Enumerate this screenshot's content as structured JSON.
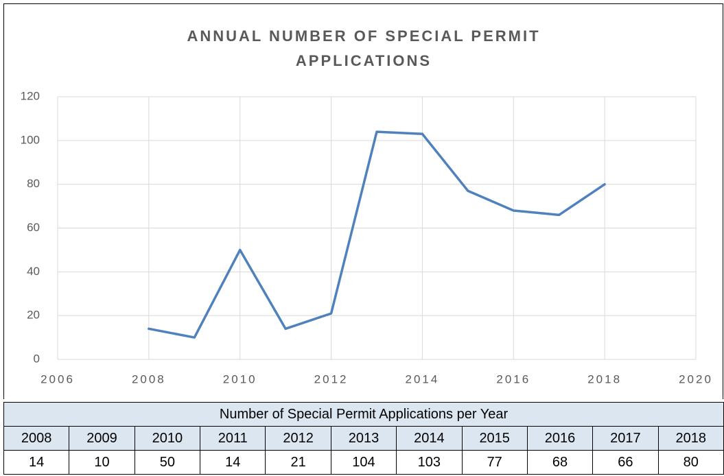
{
  "chart_data": {
    "type": "line",
    "title": "ANNUAL NUMBER OF SPECIAL PERMIT APPLICATIONS",
    "x": [
      2008,
      2009,
      2010,
      2011,
      2012,
      2013,
      2014,
      2015,
      2016,
      2017,
      2018
    ],
    "values": [
      14,
      10,
      50,
      14,
      21,
      104,
      103,
      77,
      68,
      66,
      80
    ],
    "color": "#4f81bd",
    "xlim": [
      2006,
      2020
    ],
    "xticks": [
      2006,
      2008,
      2010,
      2012,
      2014,
      2016,
      2018,
      2020
    ],
    "ylim": [
      0,
      120
    ],
    "yticks": [
      0,
      20,
      40,
      60,
      80,
      100,
      120
    ],
    "grid": true
  },
  "table": {
    "title": "Number of Special Permit Applications per Year",
    "header": [
      "2008",
      "2009",
      "2010",
      "2011",
      "2012",
      "2013",
      "2014",
      "2015",
      "2016",
      "2017",
      "2018"
    ],
    "rows": [
      [
        14,
        10,
        50,
        14,
        21,
        104,
        103,
        77,
        68,
        66,
        80
      ]
    ]
  }
}
